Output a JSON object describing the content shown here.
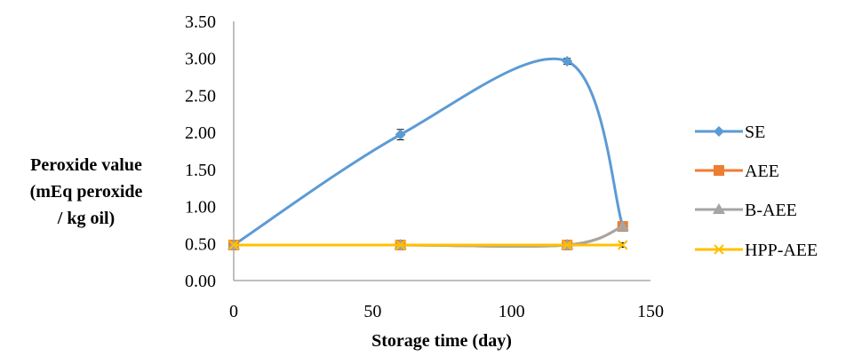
{
  "chart_data": {
    "type": "line",
    "title": "",
    "xlabel": "Storage time (day)",
    "ylabel_lines": [
      "Peroxide value",
      "(mEq peroxide",
      "/ kg oil)"
    ],
    "xlim": [
      0,
      150
    ],
    "ylim": [
      0,
      3.5
    ],
    "x_ticks": [
      "0",
      "50",
      "100",
      "150"
    ],
    "y_ticks": [
      "0.00",
      "0.50",
      "1.00",
      "1.50",
      "2.00",
      "2.50",
      "3.00",
      "3.50"
    ],
    "grid": false,
    "legend_position": "right",
    "series": [
      {
        "name": "SE",
        "color": "#5b9bd5",
        "marker": "diamond",
        "x": [
          0,
          60,
          120,
          140
        ],
        "y": [
          0.48,
          1.97,
          2.96,
          0.73
        ],
        "error": [
          0,
          0.07,
          0.04,
          0
        ]
      },
      {
        "name": "AEE",
        "color": "#ed7d31",
        "marker": "square",
        "x": [
          0,
          60,
          120,
          140
        ],
        "y": [
          0.48,
          0.48,
          0.48,
          0.73
        ],
        "error": [
          0,
          0,
          0,
          0
        ]
      },
      {
        "name": "B-AEE",
        "color": "#a5a5a5",
        "marker": "triangle",
        "x": [
          0,
          60,
          120,
          140
        ],
        "y": [
          0.48,
          0.48,
          0.48,
          0.73
        ],
        "error": [
          0,
          0,
          0,
          0
        ]
      },
      {
        "name": "HPP-AEE",
        "color": "#ffc000",
        "marker": "x",
        "x": [
          0,
          60,
          120,
          140
        ],
        "y": [
          0.48,
          0.48,
          0.48,
          0.48
        ],
        "error": [
          0,
          0,
          0,
          0.03
        ]
      }
    ]
  }
}
